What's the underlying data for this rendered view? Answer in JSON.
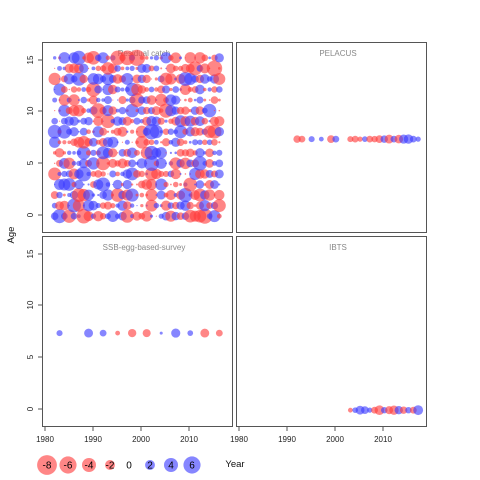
{
  "chart_data": {
    "type": "scatter",
    "subtype": "bubble-residuals",
    "xlabel": "Year",
    "ylabel": "Age",
    "xlim": [
      1980,
      2018
    ],
    "ylim": [
      -1.5,
      16.5
    ],
    "x_ticks": [
      1980,
      1990,
      2000,
      2010
    ],
    "y_ticks": [
      0,
      5,
      10,
      15
    ],
    "positive_color": "#3b3bff",
    "negative_color": "#ff3b3b",
    "legend": {
      "placement": "bottom-left",
      "values": [
        -8,
        -6,
        -4,
        -2,
        0,
        2,
        4,
        6
      ]
    },
    "panels": [
      {
        "title": "Residual catch",
        "years": [
          1982,
          2016
        ],
        "ages": [
          0,
          15
        ],
        "pattern": "full-grid"
      },
      {
        "title": "PELACUS",
        "points": [
          {
            "x": 1992,
            "y": 7.3,
            "r": -1.2
          },
          {
            "x": 1993,
            "y": 7.3,
            "r": -1.0
          },
          {
            "x": 1995,
            "y": 7.3,
            "r": 0.8
          },
          {
            "x": 1997,
            "y": 7.3,
            "r": 0.5
          },
          {
            "x": 1999,
            "y": 7.3,
            "r": -1.3
          },
          {
            "x": 2000,
            "y": 7.3,
            "r": 1.0
          },
          {
            "x": 2003,
            "y": 7.3,
            "r": -0.8
          },
          {
            "x": 2004,
            "y": 7.3,
            "r": -1.0
          },
          {
            "x": 2005,
            "y": 7.3,
            "r": -0.6
          },
          {
            "x": 2006,
            "y": 7.3,
            "r": 0.7
          },
          {
            "x": 2007,
            "y": 7.3,
            "r": -1.0
          },
          {
            "x": 2008,
            "y": 7.3,
            "r": -0.9
          },
          {
            "x": 2009,
            "y": 7.3,
            "r": -1.3
          },
          {
            "x": 2010,
            "y": 7.3,
            "r": 1.2
          },
          {
            "x": 2011,
            "y": 7.3,
            "r": -1.7
          },
          {
            "x": 2012,
            "y": 7.3,
            "r": 1.0
          },
          {
            "x": 2013,
            "y": 7.3,
            "r": -1.6
          },
          {
            "x": 2014,
            "y": 7.3,
            "r": 1.8
          },
          {
            "x": 2015,
            "y": 7.3,
            "r": 1.9
          },
          {
            "x": 2016,
            "y": 7.3,
            "r": 1.0
          },
          {
            "x": 2017,
            "y": 7.3,
            "r": 0.6
          }
        ]
      },
      {
        "title": "SSB-egg-based-survey",
        "points": [
          {
            "x": 1983,
            "y": 7.3,
            "r": 0.8
          },
          {
            "x": 1989,
            "y": 7.3,
            "r": 1.7
          },
          {
            "x": 1992,
            "y": 7.3,
            "r": 1.0
          },
          {
            "x": 1995,
            "y": 7.3,
            "r": -0.5
          },
          {
            "x": 1998,
            "y": 7.3,
            "r": -1.5
          },
          {
            "x": 2001,
            "y": 7.3,
            "r": -1.4
          },
          {
            "x": 2004,
            "y": 7.3,
            "r": 0.2
          },
          {
            "x": 2007,
            "y": 7.3,
            "r": 1.8
          },
          {
            "x": 2010,
            "y": 7.3,
            "r": 0.7
          },
          {
            "x": 2013,
            "y": 7.3,
            "r": -1.7
          },
          {
            "x": 2016,
            "y": 7.3,
            "r": -1.0
          }
        ]
      },
      {
        "title": "IBTS",
        "points": [
          {
            "x": 2003,
            "y": 0,
            "r": -0.5
          },
          {
            "x": 2004,
            "y": 0,
            "r": 0.7
          },
          {
            "x": 2005,
            "y": 0,
            "r": 1.7
          },
          {
            "x": 2006,
            "y": 0,
            "r": 1.3
          },
          {
            "x": 2007,
            "y": 0,
            "r": 0.6
          },
          {
            "x": 2008,
            "y": 0,
            "r": -1.0
          },
          {
            "x": 2009,
            "y": 0,
            "r": -2.0
          },
          {
            "x": 2010,
            "y": 0,
            "r": 0.9
          },
          {
            "x": 2011,
            "y": 0,
            "r": -1.4
          },
          {
            "x": 2012,
            "y": 0,
            "r": -1.9
          },
          {
            "x": 2013,
            "y": 0,
            "r": 1.5
          },
          {
            "x": 2014,
            "y": 0,
            "r": -1.2
          },
          {
            "x": 2015,
            "y": 0,
            "r": 0.9
          },
          {
            "x": 2016,
            "y": 0,
            "r": -1.0
          },
          {
            "x": 2017,
            "y": 0,
            "r": 2.1
          }
        ]
      }
    ]
  }
}
